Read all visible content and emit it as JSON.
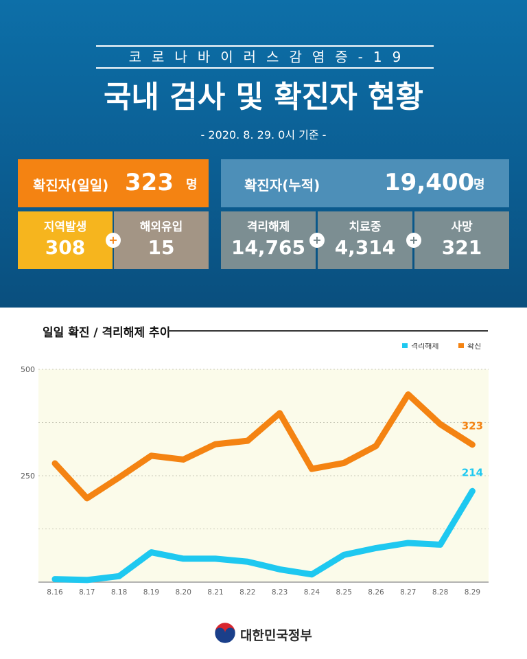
{
  "header": {
    "subtitle": "코로나바이러스감염증-19",
    "title": "국내 검사 및 확진자 현황",
    "date": "- 2020. 8. 29. 0시 기준 -"
  },
  "stats": {
    "daily": {
      "label": "확진자(일일)",
      "value": "323",
      "unit": "명"
    },
    "cumulative": {
      "label": "확진자(누적)",
      "value": "19,400",
      "unit": "명"
    },
    "local": {
      "label": "지역발생",
      "value": "308"
    },
    "overseas": {
      "label": "해외유입",
      "value": "15"
    },
    "released": {
      "label": "격리해제",
      "value": "14,765"
    },
    "treatment": {
      "label": "치료중",
      "value": "4,314"
    },
    "deaths": {
      "label": "사망",
      "value": "321"
    },
    "plus_symbol": "+"
  },
  "chart_data": {
    "type": "line",
    "title": "일일 확진 / 격리해제 추이",
    "categories": [
      "8.16",
      "8.17",
      "8.18",
      "8.19",
      "8.20",
      "8.21",
      "8.22",
      "8.23",
      "8.24",
      "8.25",
      "8.26",
      "8.27",
      "8.28",
      "8.29"
    ],
    "ylim": [
      0,
      500
    ],
    "yticks": [
      250,
      500
    ],
    "series": [
      {
        "name": "격리해제",
        "color": "#1ec8f0",
        "values": [
          7,
          5,
          14,
          70,
          55,
          55,
          48,
          30,
          18,
          64,
          80,
          92,
          88,
          214
        ],
        "last_label": "214"
      },
      {
        "name": "확진",
        "color": "#f48312",
        "values": [
          279,
          197,
          246,
          297,
          288,
          324,
          332,
          397,
          266,
          280,
          320,
          441,
          371,
          323
        ],
        "last_label": "323"
      }
    ],
    "legend_position": "top-right"
  },
  "footer": {
    "org": "대한민국정부"
  }
}
